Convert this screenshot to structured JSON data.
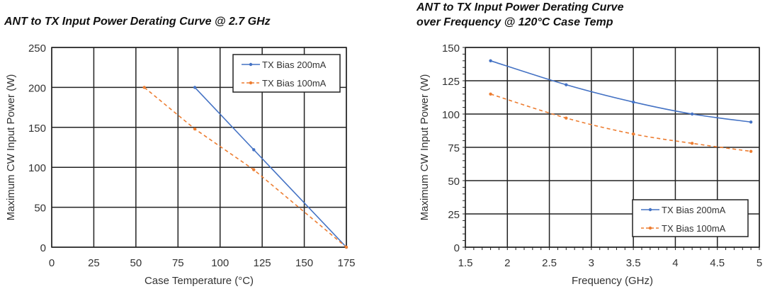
{
  "chart_data": [
    {
      "type": "line",
      "title": "ANT to TX Input Power Derating Curve @ 2.7 GHz",
      "xlabel": "Case Temperature (°C)",
      "ylabel": "Maximum CW Input Power (W)",
      "xlim": [
        0,
        175
      ],
      "ylim": [
        0,
        250
      ],
      "xticks": [
        "0",
        "25",
        "50",
        "75",
        "100",
        "125",
        "150",
        "175"
      ],
      "yticks": [
        "0",
        "50",
        "100",
        "150",
        "200",
        "250"
      ],
      "grid": true,
      "legend": "top-right",
      "smooth": false,
      "series": [
        {
          "name": "TX Bias 200mA",
          "color": "#4472C4",
          "dash": false,
          "x": [
            85,
            120,
            175
          ],
          "y": [
            200,
            122,
            0
          ]
        },
        {
          "name": "TX Bias 100mA",
          "color": "#ED7D31",
          "dash": true,
          "x": [
            55,
            85,
            120,
            175
          ],
          "y": [
            200,
            148,
            97,
            0
          ]
        }
      ]
    },
    {
      "type": "line",
      "title": "ANT to TX Input Power Derating Curve",
      "title_line2": "over Frequency @ 120°C Case Temp",
      "xlabel": "Frequency (GHz)",
      "ylabel": "Maximum CW Input Power (W)",
      "xlim": [
        1.5,
        5
      ],
      "ylim": [
        0,
        150
      ],
      "xticks": [
        "1.5",
        "2",
        "2.5",
        "3",
        "3.5",
        "4",
        "4.5",
        "5"
      ],
      "yticks": [
        "0",
        "25",
        "50",
        "75",
        "100",
        "125",
        "150"
      ],
      "grid": true,
      "legend": "bottom-right",
      "smooth": true,
      "series": [
        {
          "name": "TX Bias 200mA",
          "color": "#4472C4",
          "dash": false,
          "x": [
            1.8,
            2.7,
            3.5,
            4.2,
            4.9
          ],
          "y": [
            140,
            122,
            109,
            100,
            94
          ]
        },
        {
          "name": "TX Bias 100mA",
          "color": "#ED7D31",
          "dash": true,
          "x": [
            1.8,
            2.7,
            3.5,
            4.2,
            4.9
          ],
          "y": [
            115,
            97,
            85,
            78,
            72
          ]
        }
      ]
    }
  ]
}
